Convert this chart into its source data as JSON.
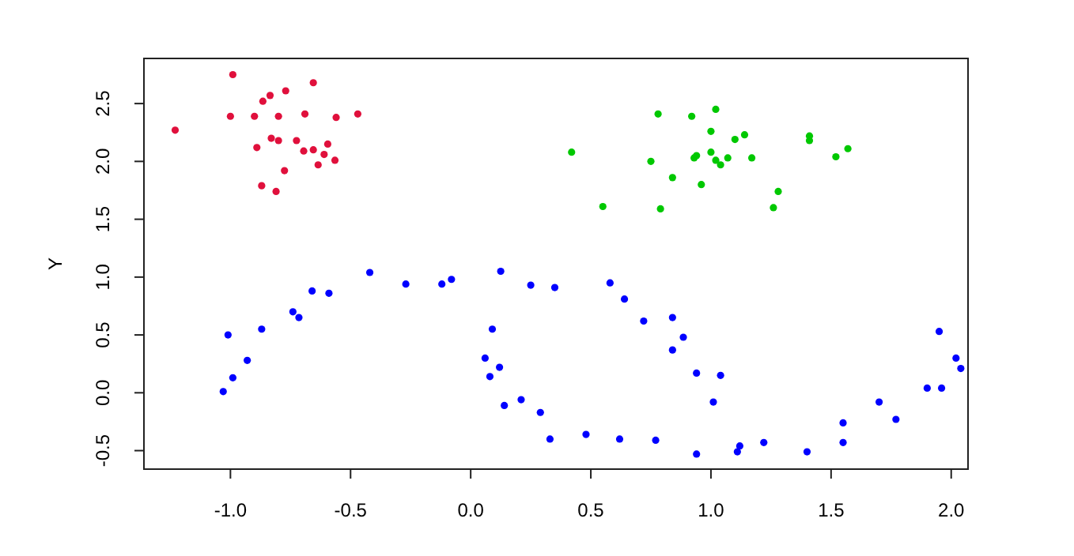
{
  "chart_data": {
    "type": "scatter",
    "ylabel": "Y",
    "xlim": [
      -1.36,
      2.07
    ],
    "ylim": [
      -0.66,
      2.89
    ],
    "xticks": [
      {
        "value": -1,
        "label": "-1.0"
      },
      {
        "value": -0.5,
        "label": "-0.5"
      },
      {
        "value": 0,
        "label": "0.0"
      },
      {
        "value": 0.5,
        "label": "0.5"
      },
      {
        "value": 1,
        "label": "1.0"
      },
      {
        "value": 1.5,
        "label": "1.5"
      },
      {
        "value": 2,
        "label": "2.0"
      }
    ],
    "yticks": [
      {
        "value": -0.5,
        "label": "-0.5"
      },
      {
        "value": 0,
        "label": "0.0"
      },
      {
        "value": 0.5,
        "label": "0.5"
      },
      {
        "value": 1,
        "label": "1.0"
      },
      {
        "value": 1.5,
        "label": "1.5"
      },
      {
        "value": 2,
        "label": "2.0"
      },
      {
        "value": 2.5,
        "label": "2.5"
      }
    ],
    "grid": false,
    "marker": "circle",
    "series": [
      {
        "color": "#e0103c",
        "x": [
          -0.99,
          -0.655,
          -0.77,
          -0.835,
          -0.865,
          -1.0,
          -0.9,
          -0.8,
          -0.69,
          -0.56,
          -0.47,
          -1.23,
          -0.83,
          -0.8,
          -0.725,
          -0.89,
          -0.595,
          -0.695,
          -0.655,
          -0.61,
          -0.565,
          -0.635,
          -0.775,
          -0.87,
          -0.81
        ],
        "values": [
          2.75,
          2.68,
          2.61,
          2.57,
          2.52,
          2.39,
          2.39,
          2.39,
          2.41,
          2.38,
          2.41,
          2.27,
          2.2,
          2.18,
          2.18,
          2.12,
          2.15,
          2.09,
          2.1,
          2.06,
          2.01,
          1.97,
          1.92,
          1.79,
          1.74
        ]
      },
      {
        "color": "#00c800",
        "x": [
          0.78,
          0.92,
          1.02,
          1.0,
          1.1,
          1.14,
          1.41,
          1.41,
          1.57,
          1.52,
          0.42,
          0.75,
          0.94,
          0.93,
          1.0,
          1.02,
          1.04,
          1.07,
          1.17,
          0.84,
          0.96,
          1.28,
          0.55,
          0.79,
          1.26
        ],
        "values": [
          2.41,
          2.39,
          2.45,
          2.26,
          2.19,
          2.23,
          2.22,
          2.18,
          2.11,
          2.04,
          2.08,
          2.0,
          2.05,
          2.03,
          2.08,
          2.01,
          1.97,
          2.03,
          2.03,
          1.86,
          1.8,
          1.74,
          1.61,
          1.59,
          1.6
        ]
      },
      {
        "color": "#0000ff",
        "x": [
          -0.42,
          -0.66,
          -0.59,
          -0.74,
          -0.715,
          -1.01,
          -0.87,
          -0.93,
          -0.99,
          -1.03,
          -0.27,
          -0.12,
          -0.08,
          0.125,
          0.25,
          0.35,
          0.58,
          0.64,
          0.72,
          0.84,
          0.885,
          0.84,
          0.94,
          1.04,
          1.01,
          0.09,
          0.06,
          0.12,
          0.08,
          0.14,
          0.21,
          0.29,
          0.33,
          0.48,
          0.62,
          0.77,
          0.94,
          1.12,
          1.11,
          1.22,
          1.4,
          1.55,
          1.55,
          1.7,
          1.77,
          1.9,
          1.96,
          1.95,
          2.02,
          2.04
        ],
        "values": [
          1.04,
          0.88,
          0.86,
          0.7,
          0.65,
          0.5,
          0.55,
          0.28,
          0.13,
          0.01,
          0.94,
          0.94,
          0.98,
          1.05,
          0.93,
          0.91,
          0.95,
          0.81,
          0.62,
          0.65,
          0.48,
          0.37,
          0.17,
          0.15,
          -0.08,
          0.55,
          0.3,
          0.22,
          0.14,
          -0.11,
          -0.06,
          -0.17,
          -0.4,
          -0.36,
          -0.4,
          -0.41,
          -0.53,
          -0.46,
          -0.51,
          -0.43,
          -0.51,
          -0.43,
          -0.26,
          -0.08,
          -0.23,
          0.04,
          0.04,
          0.53,
          0.3,
          0.21
        ]
      }
    ]
  }
}
